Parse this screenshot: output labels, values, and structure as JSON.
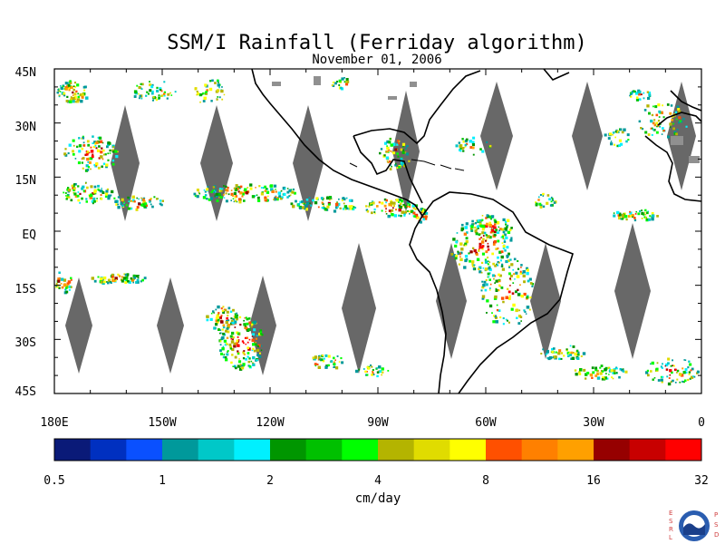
{
  "title": "SSM/I Rainfall (Ferriday algorithm)",
  "subtitle": "November 01, 2006",
  "lat_labels": [
    "45N",
    "30N",
    "15N",
    "EQ",
    "15S",
    "30S",
    "45S"
  ],
  "lon_labels": [
    "180E",
    "150W",
    "120W",
    "90W",
    "60W",
    "30W",
    "0"
  ],
  "map_extent": {
    "lon_min": -180,
    "lon_max": 0,
    "lat_min": -45,
    "lat_max": 45
  },
  "colorbar": {
    "label": "cm/day",
    "tick_labels": [
      "0.5",
      "1",
      "2",
      "4",
      "8",
      "16",
      "32"
    ],
    "colors": [
      "#0a1a78",
      "#0030c0",
      "#0a50ff",
      "#00999b",
      "#00c8c8",
      "#00f0ff",
      "#009600",
      "#00c000",
      "#00ff00",
      "#b4b400",
      "#e0dc00",
      "#ffff00",
      "#ff5000",
      "#ff8000",
      "#ffa000",
      "#960000",
      "#c80000",
      "#ff0000"
    ]
  },
  "colors": {
    "no_data_gap": "#686868",
    "coast": "#000000",
    "land_no_data": "#909090"
  },
  "logo": {
    "name": "NOAA",
    "left_text": "ESRL",
    "right_text": "PSD"
  }
}
